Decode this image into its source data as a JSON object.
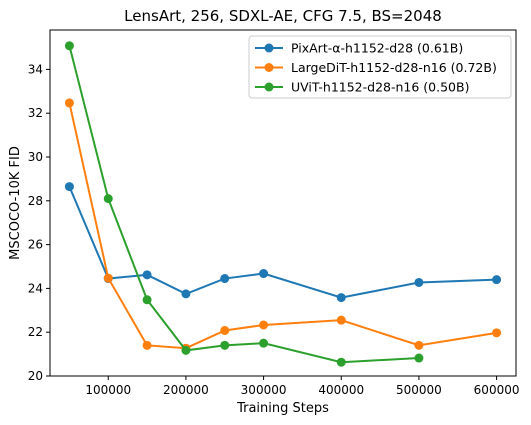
{
  "chart_data": {
    "type": "line",
    "title": "LensArt, 256, SDXL-AE, CFG 7.5, BS=2048",
    "xlabel": "Training Steps",
    "ylabel": "MSCOCO-10K FID",
    "xlim": [
      25000,
      625000
    ],
    "ylim": [
      20,
      35.8
    ],
    "xticks": [
      100000,
      200000,
      300000,
      400000,
      500000,
      600000
    ],
    "xtick_labels": [
      "100000",
      "200000",
      "300000",
      "400000",
      "500000",
      "600000"
    ],
    "yticks": [
      20,
      22,
      24,
      26,
      28,
      30,
      32,
      34
    ],
    "ytick_labels": [
      "20",
      "22",
      "24",
      "26",
      "28",
      "30",
      "32",
      "34"
    ],
    "grid": false,
    "legend_position": "top-right",
    "series": [
      {
        "name": "PixArt-α-h1152-d28 (0.61B)",
        "color": "#1f77b4",
        "x": [
          50000,
          100000,
          150000,
          200000,
          250000,
          300000,
          400000,
          500000,
          600000
        ],
        "y": [
          28.65,
          24.45,
          24.62,
          23.75,
          24.45,
          24.68,
          23.58,
          24.27,
          24.4
        ]
      },
      {
        "name": "LargeDiT-h1152-d28-n16 (0.72B)",
        "color": "#ff7f0e",
        "x": [
          50000,
          100000,
          150000,
          200000,
          250000,
          300000,
          400000,
          500000,
          600000
        ],
        "y": [
          32.47,
          24.47,
          21.4,
          21.27,
          22.08,
          22.33,
          22.55,
          21.4,
          21.97
        ]
      },
      {
        "name": "UViT-h1152-d28-n16 (0.50B)",
        "color": "#2ca02c",
        "x": [
          50000,
          100000,
          150000,
          200000,
          250000,
          300000,
          400000,
          500000
        ],
        "y": [
          35.08,
          28.1,
          23.48,
          21.17,
          21.4,
          21.5,
          20.63,
          20.82
        ]
      }
    ]
  }
}
